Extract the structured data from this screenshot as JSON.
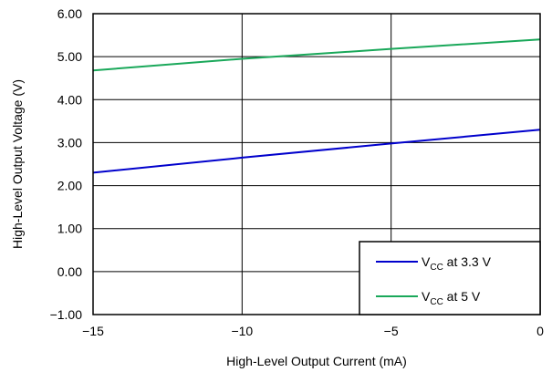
{
  "chart_data": {
    "type": "line",
    "title": "",
    "xlabel": "High-Level Output Current (mA)",
    "ylabel": "High-Level Output Voltage (V)",
    "xlim": [
      -15,
      0
    ],
    "ylim": [
      -1,
      6
    ],
    "xticks": [
      -15,
      -10,
      -5,
      0
    ],
    "xtick_labels": [
      "−15",
      "−10",
      "−5",
      "0"
    ],
    "yticks": [
      -1,
      0,
      1,
      2,
      3,
      4,
      5,
      6
    ],
    "ytick_labels": [
      "−1.00",
      "0.00",
      "1.00",
      "2.00",
      "3.00",
      "4.00",
      "5.00",
      "6.00"
    ],
    "grid": true,
    "legend_position": "bottom-right",
    "series": [
      {
        "name": "VCC at 3.3 V",
        "label_main": "V",
        "label_sub": "CC",
        "label_rest": " at 3.3 V",
        "color": "#0000cc",
        "x": [
          -15,
          -10,
          -5,
          0
        ],
        "y": [
          2.3,
          2.65,
          2.98,
          3.3
        ]
      },
      {
        "name": "VCC at 5 V",
        "label_main": "V",
        "label_sub": "CC",
        "label_rest": " at 5 V",
        "color": "#1aa85a",
        "x": [
          -15,
          -10,
          -5,
          0
        ],
        "y": [
          4.68,
          4.95,
          5.18,
          5.4
        ]
      }
    ]
  }
}
